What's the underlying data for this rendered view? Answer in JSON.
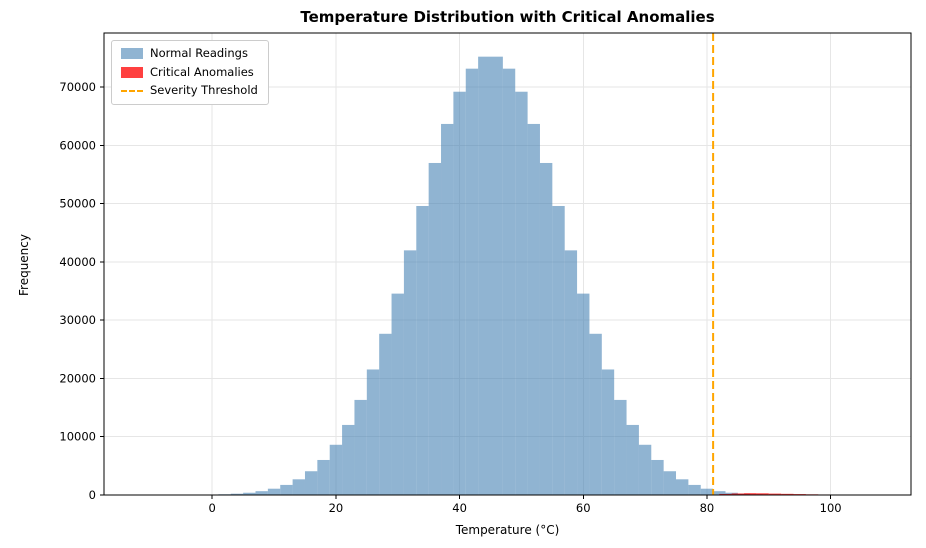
{
  "chart_data": {
    "type": "bar",
    "title": "Temperature Distribution with Critical Anomalies",
    "xlabel": "Temperature (°C)",
    "ylabel": "Frequency",
    "xlim": [
      -17.5,
      113
    ],
    "ylim": [
      0,
      79300
    ],
    "xticks": [
      0,
      20,
      40,
      60,
      80,
      100
    ],
    "yticks": [
      0,
      10000,
      20000,
      30000,
      40000,
      50000,
      60000,
      70000
    ],
    "grid": true,
    "grid_color": "#e6e6e6",
    "legend_position": "upper left",
    "bin_width": 2,
    "series": [
      {
        "name": "Normal Readings",
        "color": "rgba(70,130,180,0.6)",
        "bin_centers": [
          -10,
          -8,
          -6,
          -4,
          -2,
          0,
          2,
          4,
          6,
          8,
          10,
          12,
          14,
          16,
          18,
          20,
          22,
          24,
          26,
          28,
          30,
          32,
          34,
          36,
          38,
          40,
          42,
          44,
          46,
          48,
          50,
          52,
          54,
          56,
          58,
          60,
          62,
          64,
          66,
          68,
          70,
          72,
          74,
          76,
          78,
          80,
          82,
          84,
          86,
          88,
          90,
          92,
          94
        ],
        "values": [
          2,
          4,
          9,
          18,
          35,
          66,
          124,
          223,
          388,
          657,
          1081,
          1730,
          2693,
          4079,
          6012,
          8621,
          12026,
          16319,
          21545,
          27671,
          34566,
          41991,
          49607,
          56990,
          63690,
          69221,
          73178,
          75239,
          75238,
          73178,
          69221,
          63690,
          56990,
          49607,
          41991,
          34566,
          27671,
          21545,
          16319,
          12026,
          8621,
          6012,
          4079,
          2693,
          1730,
          1081,
          657,
          388,
          223,
          124,
          66,
          35,
          18
        ]
      },
      {
        "name": "Critical Anomalies",
        "color": "rgba(255,0,0,0.75)",
        "bin_centers": [
          83,
          85,
          87,
          89,
          91,
          93,
          95,
          97,
          99,
          101,
          103,
          105
        ],
        "values": [
          180,
          260,
          310,
          290,
          240,
          200,
          160,
          120,
          90,
          60,
          35,
          15
        ]
      }
    ],
    "threshold": {
      "label": "Severity Threshold",
      "x": 81,
      "color": "#FFA500",
      "style": "dashed"
    }
  }
}
